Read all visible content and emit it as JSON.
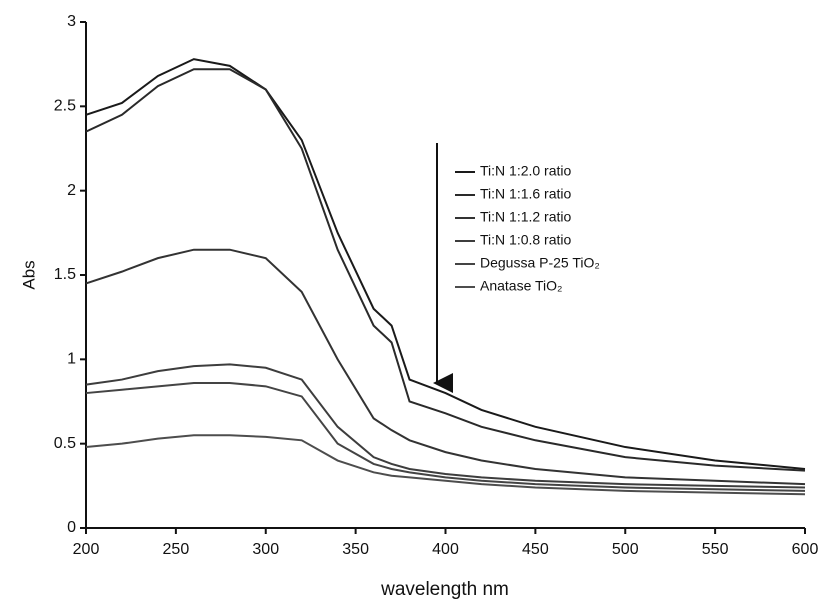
{
  "chart_data": {
    "type": "line",
    "x_label": "wavelength nm",
    "y_label": "Abs",
    "x": [
      200,
      220,
      240,
      260,
      280,
      300,
      320,
      340,
      360,
      370,
      380,
      400,
      420,
      450,
      500,
      550,
      600
    ],
    "series": [
      {
        "name": "Ti:N 1:2.0 ratio",
        "color": "#1a1a1a",
        "values": [
          2.45,
          2.52,
          2.68,
          2.78,
          2.74,
          2.6,
          2.3,
          1.75,
          1.3,
          1.2,
          0.88,
          0.8,
          0.7,
          0.6,
          0.48,
          0.4,
          0.35
        ]
      },
      {
        "name": "Ti:N 1:1.6 ratio",
        "color": "#2a2a2a",
        "values": [
          2.35,
          2.45,
          2.62,
          2.72,
          2.72,
          2.6,
          2.25,
          1.65,
          1.2,
          1.1,
          0.75,
          0.68,
          0.6,
          0.52,
          0.42,
          0.37,
          0.34
        ]
      },
      {
        "name": "Ti:N 1:1.2 ratio",
        "color": "#333333",
        "values": [
          1.45,
          1.52,
          1.6,
          1.65,
          1.65,
          1.6,
          1.4,
          1.0,
          0.65,
          0.58,
          0.52,
          0.45,
          0.4,
          0.35,
          0.3,
          0.28,
          0.26
        ]
      },
      {
        "name": "Ti:N 1:0.8 ratio",
        "color": "#3d3d3d",
        "values": [
          0.85,
          0.88,
          0.93,
          0.96,
          0.97,
          0.95,
          0.88,
          0.6,
          0.42,
          0.38,
          0.35,
          0.32,
          0.3,
          0.28,
          0.26,
          0.25,
          0.24
        ]
      },
      {
        "name": "Degussa P-25 TiO₂",
        "color": "#444444",
        "values": [
          0.8,
          0.82,
          0.84,
          0.86,
          0.86,
          0.84,
          0.78,
          0.5,
          0.38,
          0.35,
          0.33,
          0.3,
          0.28,
          0.26,
          0.24,
          0.23,
          0.22
        ]
      },
      {
        "name": "Anatase TiO₂",
        "color": "#4d4d4d",
        "values": [
          0.48,
          0.5,
          0.53,
          0.55,
          0.55,
          0.54,
          0.52,
          0.4,
          0.33,
          0.31,
          0.3,
          0.28,
          0.26,
          0.24,
          0.22,
          0.21,
          0.2
        ]
      }
    ],
    "xlim": [
      200,
      600
    ],
    "xticks": [
      200,
      250,
      300,
      350,
      400,
      450,
      500,
      550,
      600
    ],
    "ylim": [
      0,
      3
    ],
    "yticks": [
      0,
      0.5,
      1,
      1.5,
      2,
      2.5,
      3
    ]
  }
}
